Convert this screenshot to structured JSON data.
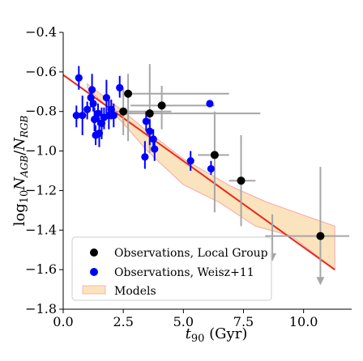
{
  "chart_data": {
    "type": "scatter",
    "xlabel": "t90 (Gyr)",
    "xlabel_parts": {
      "main": "t",
      "sub": "90",
      "unit": " (Gyr)"
    },
    "ylabel": "log10 NAGB/NRGB",
    "xlim": [
      0,
      12
    ],
    "ylim": [
      -1.8,
      -0.4
    ],
    "x_ticks": [
      0.0,
      2.5,
      5.0,
      7.5,
      10.0
    ],
    "x_tick_labels": [
      "0.0",
      "2.5",
      "5.0",
      "7.5",
      "10.0"
    ],
    "y_ticks": [
      -1.8,
      -1.6,
      -1.4,
      -1.2,
      -1.0,
      -0.8,
      -0.6,
      -0.4
    ],
    "y_tick_labels": [
      "−1.8",
      "−1.6",
      "−1.4",
      "−1.2",
      "−1.0",
      "−0.8",
      "−0.6",
      "−0.4"
    ],
    "grid": false,
    "legend_position": "lower-left",
    "colors": {
      "local_group": "#000000",
      "weisz": "#0000ff",
      "models_fill": "#fbe3bd",
      "models_edge": "#f4a8a8",
      "fit_line": "#e8281e",
      "error_bars_lg": "#a6a6a6",
      "error_bars_weisz": "#0000ff"
    },
    "fit_line": {
      "x": [
        0,
        11.3
      ],
      "y": [
        -0.615,
        -1.6
      ]
    },
    "models_band": {
      "upper": [
        [
          1.0,
          -0.66
        ],
        [
          2.5,
          -0.8
        ],
        [
          3.5,
          -0.9
        ],
        [
          5.0,
          -1.04
        ],
        [
          7.0,
          -1.18
        ],
        [
          8.5,
          -1.26
        ],
        [
          11.3,
          -1.38
        ]
      ],
      "lower": [
        [
          11.3,
          -1.6
        ],
        [
          9.5,
          -1.43
        ],
        [
          8.0,
          -1.38
        ],
        [
          6.5,
          -1.26
        ],
        [
          5.0,
          -1.17
        ],
        [
          3.5,
          -1.0
        ],
        [
          2.5,
          -0.86
        ],
        [
          1.0,
          -0.68
        ]
      ]
    },
    "series": [
      {
        "name": "Observations, Local Group",
        "marker": "circle",
        "points": [
          {
            "x": 2.7,
            "y": -0.71,
            "xerr": [
              0.0,
              4.2
            ],
            "yerr": [
              0.1,
              0.24
            ]
          },
          {
            "x": 2.5,
            "y": -0.8,
            "xerr": [
              0.5,
              2.0
            ],
            "yerr": [
              0.12,
              0.12
            ]
          },
          {
            "x": 3.6,
            "y": -0.81,
            "xerr": [
              1.0,
              4.6
            ],
            "yerr": [
              0.25,
              0.2
            ]
          },
          {
            "x": 4.1,
            "y": -0.77,
            "xerr": [
              1.3,
              2.2
            ],
            "yerr": [
              0.1,
              0.12
            ]
          },
          {
            "x": 6.3,
            "y": -1.02,
            "xerr": [
              0.7,
              0.6
            ],
            "yerr": [
              0.22,
              0.29
            ]
          },
          {
            "x": 7.4,
            "y": -1.15,
            "xerr": [
              0.5,
              0.6
            ],
            "yerr": [
              0.23,
              0.23
            ]
          },
          {
            "x": 10.7,
            "y": -1.43,
            "xerr": [
              2.3,
              1.2
            ],
            "yerr": [
              0.35,
              0.15
            ]
          }
        ],
        "upper_limits": [
          {
            "x": 8.7,
            "y_top": -1.32,
            "y_arrow": -1.55
          },
          {
            "x": 10.7,
            "y_top": -1.58,
            "y_arrow": -1.67
          }
        ]
      },
      {
        "name": "Observations, Weisz+11",
        "marker": "circle",
        "points": [
          {
            "x": 0.55,
            "y": -0.82,
            "yerr": [
              0.05,
              0.06
            ]
          },
          {
            "x": 0.65,
            "y": -0.63,
            "yerr": [
              0.06,
              0.06
            ]
          },
          {
            "x": 0.8,
            "y": -0.82,
            "yerr": [
              0.1,
              0.1
            ]
          },
          {
            "x": 1.0,
            "y": -0.79,
            "yerr": [
              0.04,
              0.05
            ]
          },
          {
            "x": 1.15,
            "y": -0.73,
            "yerr": [
              0.05,
              0.05
            ]
          },
          {
            "x": 1.2,
            "y": -0.69,
            "yerr": [
              0.08,
              0.06
            ]
          },
          {
            "x": 1.25,
            "y": -0.76,
            "yerr": [
              0.04,
              0.04
            ]
          },
          {
            "x": 1.3,
            "y": -0.84,
            "yerr": [
              0.06,
              0.06
            ]
          },
          {
            "x": 1.35,
            "y": -0.92,
            "yerr": [
              0.05,
              0.05
            ]
          },
          {
            "x": 1.45,
            "y": -0.81,
            "yerr": [
              0.05,
              0.06
            ]
          },
          {
            "x": 1.5,
            "y": -0.91,
            "yerr": [
              0.08,
              0.07
            ]
          },
          {
            "x": 1.6,
            "y": -0.86,
            "yerr": [
              0.08,
              0.08
            ]
          },
          {
            "x": 1.7,
            "y": -0.83,
            "yerr": [
              0.05,
              0.06
            ]
          },
          {
            "x": 1.8,
            "y": -0.73,
            "yerr": [
              0.09,
              0.08
            ]
          },
          {
            "x": 1.9,
            "y": -0.82,
            "yerr": [
              0.08,
              0.07
            ]
          },
          {
            "x": 2.0,
            "y": -0.79,
            "yerr": [
              0.05,
              0.05
            ]
          },
          {
            "x": 2.1,
            "y": -0.82,
            "yerr": [
              0.06,
              0.06
            ]
          },
          {
            "x": 2.35,
            "y": -0.68,
            "yerr": [
              0.06,
              0.05
            ]
          },
          {
            "x": 3.4,
            "y": -1.03,
            "yerr": [
              0.08,
              0.06
            ]
          },
          {
            "x": 3.45,
            "y": -0.85,
            "yerr": [
              0.05,
              0.05
            ]
          },
          {
            "x": 3.6,
            "y": -0.9,
            "yerr": [
              0.06,
              0.07
            ]
          },
          {
            "x": 3.75,
            "y": -0.94,
            "yerr": [
              0.05,
              0.06
            ]
          },
          {
            "x": 3.8,
            "y": -0.99,
            "yerr": [
              0.06,
              0.06
            ]
          },
          {
            "x": 5.3,
            "y": -1.05,
            "yerr": [
              0.05,
              0.05
            ]
          },
          {
            "x": 6.1,
            "y": -0.76,
            "yerr": [
              0.01,
              0.01
            ]
          },
          {
            "x": 6.15,
            "y": -1.09,
            "yerr": [
              0.04,
              0.03
            ]
          }
        ]
      },
      {
        "name": "Models",
        "marker": "band"
      }
    ]
  }
}
